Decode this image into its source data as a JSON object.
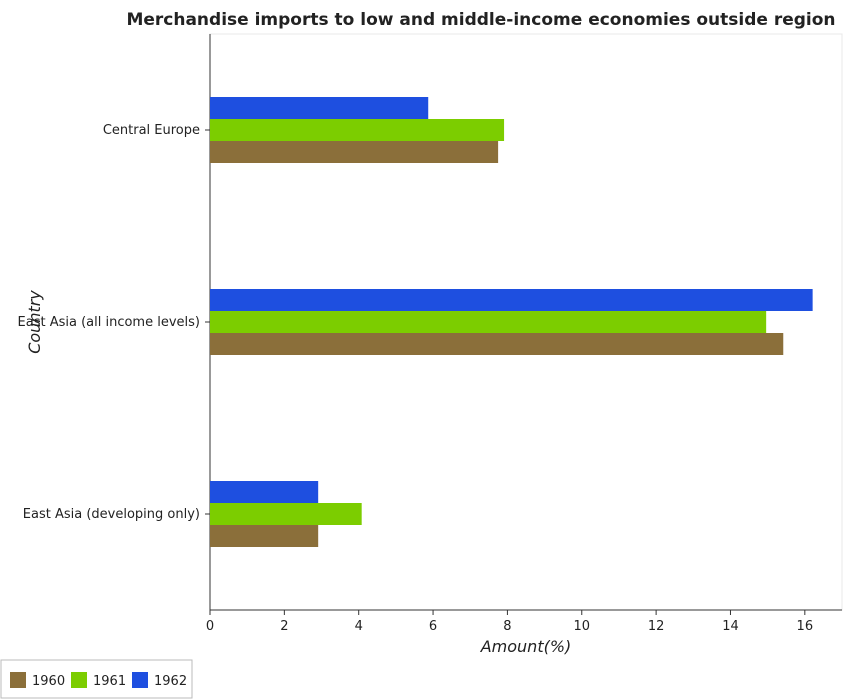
{
  "chart_data": {
    "type": "bar",
    "orientation": "horizontal",
    "title": "Merchandise imports to low and middle-income economies outside region",
    "xlabel": "Amount(%)",
    "ylabel": "Country",
    "categories": [
      "Central Europe",
      "East Asia (all income levels)",
      "East Asia (developing only)"
    ],
    "series": [
      {
        "name": "1960",
        "color": "#8B6F3A",
        "values": [
          7.75,
          15.42,
          2.91
        ]
      },
      {
        "name": "1961",
        "color": "#7CCD00",
        "values": [
          7.91,
          14.96,
          4.08
        ]
      },
      {
        "name": "1962",
        "color": "#1E4FE0",
        "values": [
          5.87,
          16.21,
          2.91
        ]
      }
    ],
    "xlim": [
      0,
      17
    ],
    "xticks": [
      0,
      2,
      4,
      6,
      8,
      10,
      12,
      14,
      16
    ],
    "legend_position": "bottom-left",
    "grid": false
  }
}
